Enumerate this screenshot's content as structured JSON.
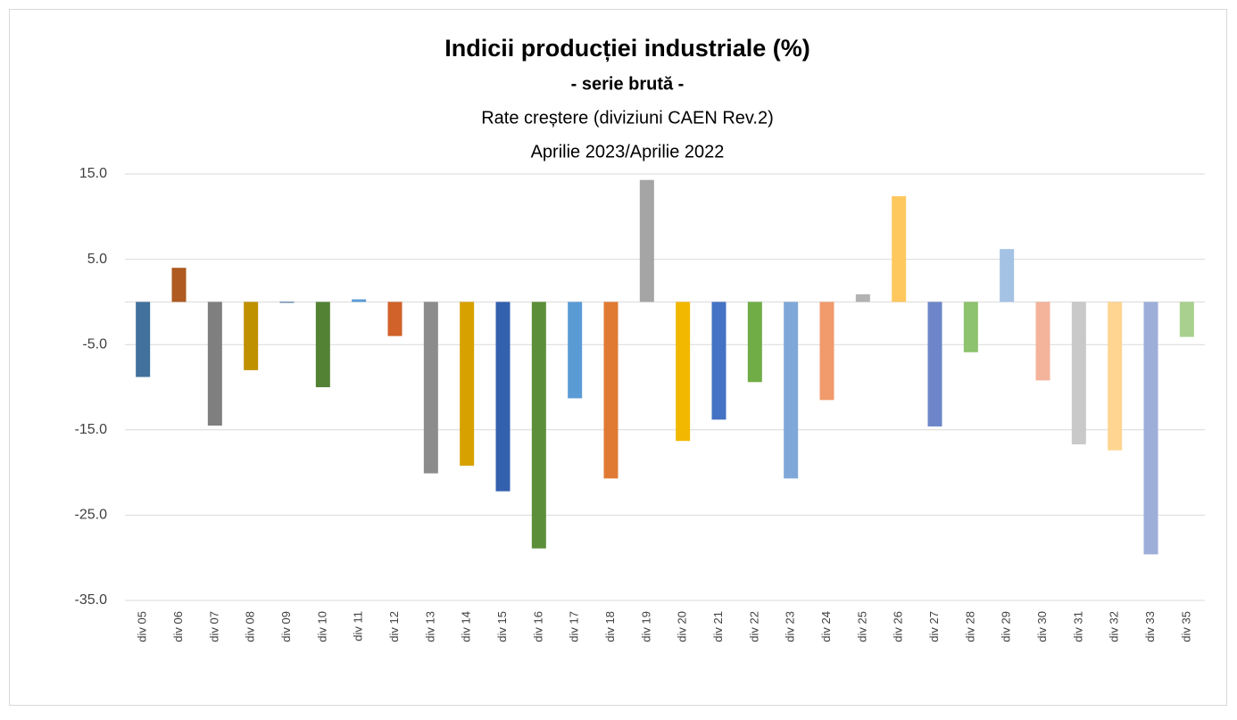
{
  "chart_data": {
    "type": "bar",
    "title": "Indicii producției industriale (%)",
    "subtitle": "- serie brută -",
    "annotations": [
      "Rate creștere  (diviziuni CAEN Rev.2)",
      "Aprilie 2023/Aprilie  2022"
    ],
    "categories": [
      "div 05",
      "div 06",
      "div 07",
      "div 08",
      "div 09",
      "div 10",
      "div 11",
      "div 12",
      "div 13",
      "div 14",
      "div 15",
      "div 16",
      "div 17",
      "div 18",
      "div 19",
      "div 20",
      "div 21",
      "div 22",
      "div 23",
      "div 24",
      "div 25",
      "div 26",
      "div 27",
      "div 28",
      "div 29",
      "div 30",
      "div 31",
      "div 32",
      "div 33",
      "div 35"
    ],
    "values": [
      -8.8,
      4.0,
      -14.5,
      -8.0,
      -0.1,
      -10.0,
      0.3,
      -4.0,
      -20.1,
      -19.2,
      -22.2,
      -28.9,
      -11.3,
      -20.7,
      14.3,
      -16.3,
      -13.8,
      -9.4,
      -20.7,
      -11.5,
      0.9,
      12.4,
      -14.6,
      -5.9,
      6.2,
      -9.2,
      -16.7,
      -17.4,
      -29.6,
      -4.1
    ],
    "colors": [
      "#41719c",
      "#ae5a21",
      "#7f7f7f",
      "#bf9000",
      "#2e5d8a",
      "#548235",
      "#5b9bd5",
      "#d0622a",
      "#8c8c8c",
      "#d7a100",
      "#3461ae",
      "#5c8f39",
      "#5b9bd5",
      "#e07a33",
      "#a5a5a5",
      "#f2b800",
      "#4472c4",
      "#70ad47",
      "#7fa8d8",
      "#f19a6c",
      "#b2b2b2",
      "#ffc85e",
      "#6d86c9",
      "#8dc26e",
      "#a4c2e4",
      "#f4b39b",
      "#c9c9c9",
      "#ffd591",
      "#9daed9",
      "#a9d08e"
    ],
    "ylim": [
      -35,
      15
    ],
    "yticks": [
      {
        "value": 15,
        "label": "15.0"
      },
      {
        "value": 5,
        "label": "5.0"
      },
      {
        "value": -5,
        "label": "-5.0"
      },
      {
        "value": -15,
        "label": "-15.0"
      },
      {
        "value": -25,
        "label": "-25.0"
      },
      {
        "value": -35,
        "label": "-35.0"
      }
    ],
    "grid": true
  }
}
